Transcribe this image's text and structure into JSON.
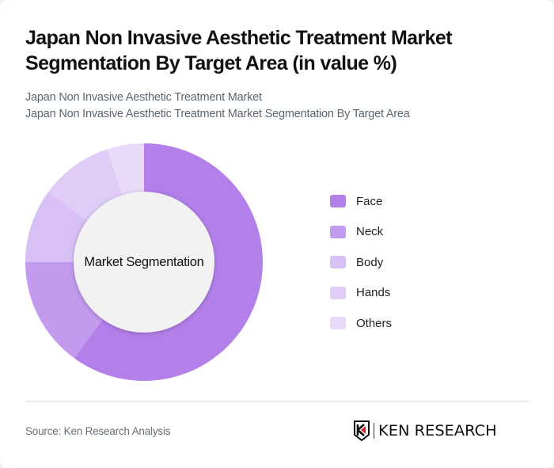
{
  "header": {
    "title": "Japan Non Invasive Aesthetic Treatment Market Segmentation By Target Area (in value %)",
    "subtitle_line1": "Japan Non Invasive Aesthetic Treatment Market",
    "subtitle_line2": "Japan Non Invasive Aesthetic Treatment Market Segmentation By Target Area"
  },
  "chart": {
    "center_label": "Market Segmentation"
  },
  "legend": [
    {
      "label": "Face",
      "color": "#b380ea"
    },
    {
      "label": "Neck",
      "color": "#c29bee"
    },
    {
      "label": "Body",
      "color": "#d8bff6"
    },
    {
      "label": "Hands",
      "color": "#e0ccf7"
    },
    {
      "label": "Others",
      "color": "#e9dafa"
    }
  ],
  "footer": {
    "source": "Source: Ken Research Analysis",
    "logo_text": "KEN RESEARCH"
  },
  "chart_data": {
    "type": "pie",
    "subtype": "donut",
    "title": "Japan Non Invasive Aesthetic Treatment Market Segmentation By Target Area (in value %)",
    "subtitle": "Japan Non Invasive Aesthetic Treatment Market Segmentation By Target Area",
    "center_label": "Market Segmentation",
    "categories": [
      "Face",
      "Neck",
      "Body",
      "Hands",
      "Others"
    ],
    "values": [
      60,
      15,
      10,
      10,
      5
    ],
    "unit": "%",
    "colors": [
      "#b380ea",
      "#c29bee",
      "#d8bff6",
      "#e0ccf7",
      "#e9dafa"
    ],
    "legend_position": "right",
    "source": "Source: Ken Research Analysis"
  }
}
